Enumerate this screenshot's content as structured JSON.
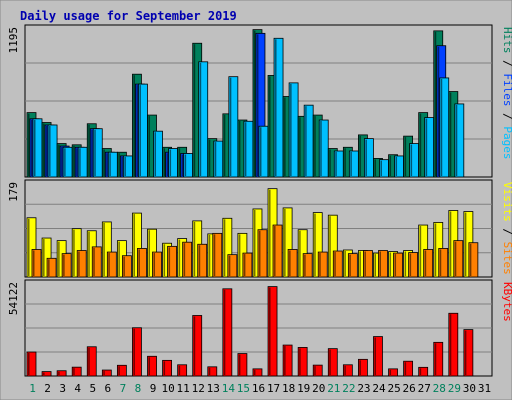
{
  "chart_data": {
    "type": "bar",
    "title": "Daily usage for September 2019",
    "categories": [
      "1",
      "2",
      "3",
      "4",
      "5",
      "6",
      "7",
      "8",
      "9",
      "10",
      "11",
      "12",
      "13",
      "14",
      "15",
      "16",
      "17",
      "18",
      "19",
      "20",
      "21",
      "22",
      "23",
      "24",
      "25",
      "26",
      "27",
      "28",
      "29",
      "30",
      "31"
    ],
    "weekend_days": [
      1,
      7,
      8,
      14,
      15,
      21,
      22,
      28,
      29
    ],
    "grid": true,
    "panels": [
      {
        "id": "top",
        "max_label": "1195",
        "ylim": [
          0,
          1195
        ],
        "right_labels": [
          "Pages",
          "Files",
          "Hits"
        ],
        "series": [
          {
            "name": "Hits",
            "color": "#00805c",
            "values": [
              520,
              440,
              270,
              260,
              430,
              230,
              200,
              830,
              500,
              240,
              240,
              1080,
              310,
              510,
              460,
              1190,
              820,
              650,
              490,
              500,
              230,
              240,
              340,
              150,
              180,
              330,
              520,
              1180,
              690,
              0,
              0
            ]
          },
          {
            "name": "Files",
            "color": "#0040ff",
            "values": [
              470,
              420,
              250,
              240,
              390,
              200,
              170,
              750,
              0,
              200,
              190,
              0,
              0,
              0,
              0,
              1160,
              0,
              0,
              0,
              0,
              0,
              0,
              0,
              0,
              0,
              0,
              0,
              1060,
              0,
              0,
              0
            ]
          },
          {
            "name": "Pages",
            "color": "#00c0ff",
            "values": [
              470,
              420,
              240,
              240,
              390,
              200,
              170,
              750,
              370,
              230,
              190,
              930,
              290,
              810,
              450,
              410,
              1120,
              760,
              580,
              460,
              210,
              210,
              310,
              140,
              170,
              270,
              480,
              800,
              590,
              0,
              0
            ]
          }
        ]
      },
      {
        "id": "middle",
        "max_label": "179",
        "ylim": [
          0,
          179
        ],
        "right_labels": [
          "Sites",
          "Visits"
        ],
        "series": [
          {
            "name": "Visits",
            "color": "#ffff00",
            "values": [
              114,
              75,
              70,
              93,
              89,
              106,
              70,
              123,
              92,
              65,
              74,
              108,
              83,
              113,
              84,
              131,
              170,
              133,
              91,
              124,
              119,
              52,
              51,
              46,
              49,
              51,
              100,
              105,
              128,
              126,
              0
            ]
          },
          {
            "name": "Sites",
            "color": "#ff8000",
            "values": [
              53,
              36,
              45,
              51,
              58,
              48,
              41,
              55,
              48,
              59,
              67,
              63,
              84,
              43,
              46,
              91,
              100,
              53,
              45,
              48,
              50,
              45,
              51,
              51,
              46,
              47,
              53,
              55,
              70,
              66,
              0
            ]
          }
        ]
      },
      {
        "id": "bottom",
        "max_label": "54122",
        "ylim": [
          0,
          54122
        ],
        "right_labels": [
          "KBytes"
        ],
        "series": [
          {
            "name": "KBytes",
            "color": "#ff0000",
            "values": [
              14100,
              2600,
              3100,
              5200,
              17200,
              3500,
              6300,
              28400,
              11600,
              9200,
              6600,
              35600,
              5400,
              51300,
              13200,
              4200,
              52600,
              18200,
              16800,
              6400,
              16100,
              6600,
              9800,
              23200,
              4200,
              8700,
              5100,
              19800,
              36900,
              27300,
              0
            ]
          }
        ]
      }
    ]
  }
}
